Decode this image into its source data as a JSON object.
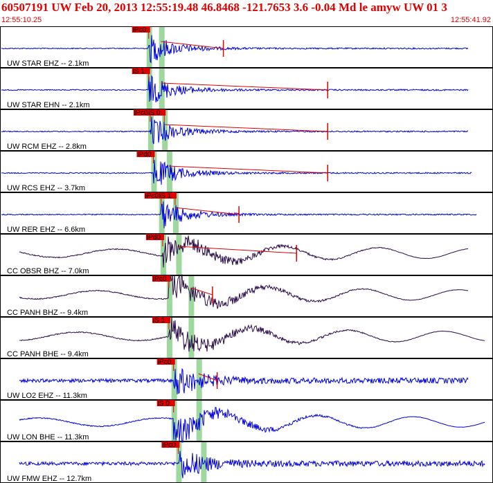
{
  "header": {
    "title": "60507191 UW Feb 20, 2013 12:55:19.48   46.8468 -121.7653  3.6 -0.04 Md le amyw UW 01   3",
    "time_start": "12:55:10.25",
    "time_end": "12:55:41.92"
  },
  "colors": {
    "title": "#e00000",
    "uw_trace": "#0000dd",
    "cc_trace": "#2a0a4a",
    "pick_box": "#e00000",
    "phase_band": "#9ed89e",
    "panel_border": "#000000"
  },
  "chart_data": {
    "type": "line",
    "title": "60507191 UW Feb 20, 2013 12:55:19.48   46.8468 -121.7653  3.6 -0.04 Md le amyw UW 01   3",
    "x_start": "12:55:10.25",
    "x_end": "12:55:41.92",
    "grid": false,
    "legend": "none",
    "traces": [
      {
        "label": "UW STAR EHZ -- 2.1km",
        "network": "UW",
        "picks": [
          "iPc0"
        ],
        "p_time": "12:55:19.8",
        "s_time": "12:55:20.6",
        "end_time": "12:55:24.6"
      },
      {
        "label": "UW STAR EHN -- 2.1km",
        "network": "UW",
        "picks": [
          "iS 1"
        ],
        "p_time": "12:55:19.8",
        "s_time": "12:55:20.6",
        "end_time": "12:55:31.3"
      },
      {
        "label": "UW RCM EHZ -- 2.8km",
        "network": "UW",
        "picks": [
          "iPc0",
          "iS 0"
        ],
        "p_time": "12:55:19.9",
        "s_time": "12:55:20.8",
        "end_time": "12:55:31.3"
      },
      {
        "label": "UW RCS EHZ -- 3.7km",
        "network": "UW",
        "picks": [
          "iPd0"
        ],
        "p_time": "12:55:20.1",
        "s_time": "12:55:21.1",
        "end_time": "12:55:31.3"
      },
      {
        "label": "UW RER EHZ -- 6.6km",
        "network": "UW",
        "picks": [
          "iPc0",
          "iS 1"
        ],
        "p_time": "12:55:20.6",
        "s_time": "12:55:21.5",
        "end_time": "12:55:25.6"
      },
      {
        "label": "CC OBSR BHZ -- 7.0km",
        "network": "CC",
        "picks": [
          "iPd0"
        ],
        "p_time": "12:55:20.7",
        "s_time": "12:55:21.7",
        "end_time": "12:55:29.3"
      },
      {
        "label": "CC PANH BHZ -- 9.4km",
        "network": "CC",
        "picks": [
          "iPc0"
        ],
        "p_time": "12:55:21.1",
        "s_time": "12:55:22.5",
        "end_time": "12:55:23.9"
      },
      {
        "label": "CC PANH BHE -- 9.4km",
        "network": "CC",
        "picks": [
          "iS 1"
        ],
        "p_time": "12:55:21.1",
        "s_time": "12:55:22.5",
        "end_time": "12:55:41.9"
      },
      {
        "label": "UW LO2 EHZ -- 11.3km",
        "network": "UW",
        "picks": [
          "iPc0"
        ],
        "p_time": "12:55:21.4",
        "s_time": "12:55:23.0",
        "end_time": "12:55:24.2"
      },
      {
        "label": "UW LON BHE -- 11.3km",
        "network": "UW",
        "picks": [
          "iS 0"
        ],
        "p_time": "12:55:21.4",
        "s_time": "12:55:23.0",
        "end_time": "12:55:41.9"
      },
      {
        "label": "UW FMW EHZ -- 12.7km",
        "network": "UW",
        "picks": [
          "iPc0"
        ],
        "p_time": "12:55:21.7",
        "s_time": "12:55:23.3",
        "end_time": "12:55:41.9"
      }
    ]
  }
}
